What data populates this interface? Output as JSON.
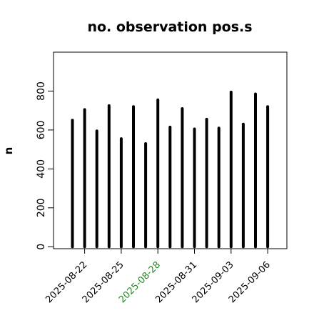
{
  "chart_data": {
    "type": "bar",
    "title": "no. observation pos.s",
    "xlabel": "",
    "ylabel": "n",
    "ylim": [
      -10,
      1000
    ],
    "yticks": [
      0,
      200,
      400,
      600,
      800
    ],
    "xticks": [
      "2025-08-22",
      "2025-08-25",
      "2025-08-28",
      "2025-08-31",
      "2025-09-03",
      "2025-09-06"
    ],
    "highlighted_tick": "2025-08-28",
    "highlight_color": "#228b22",
    "bar_color": "#000000",
    "grid": false,
    "legend": "none",
    "dates": [
      "2025-08-21",
      "2025-08-22",
      "2025-08-23",
      "2025-08-24",
      "2025-08-25",
      "2025-08-26",
      "2025-08-27",
      "2025-08-28",
      "2025-08-29",
      "2025-08-30",
      "2025-08-31",
      "2025-09-01",
      "2025-09-02",
      "2025-09-03",
      "2025-09-04",
      "2025-09-05",
      "2025-09-06"
    ],
    "values": [
      650,
      705,
      595,
      725,
      555,
      720,
      530,
      755,
      615,
      710,
      605,
      655,
      610,
      795,
      630,
      785,
      720
    ]
  }
}
